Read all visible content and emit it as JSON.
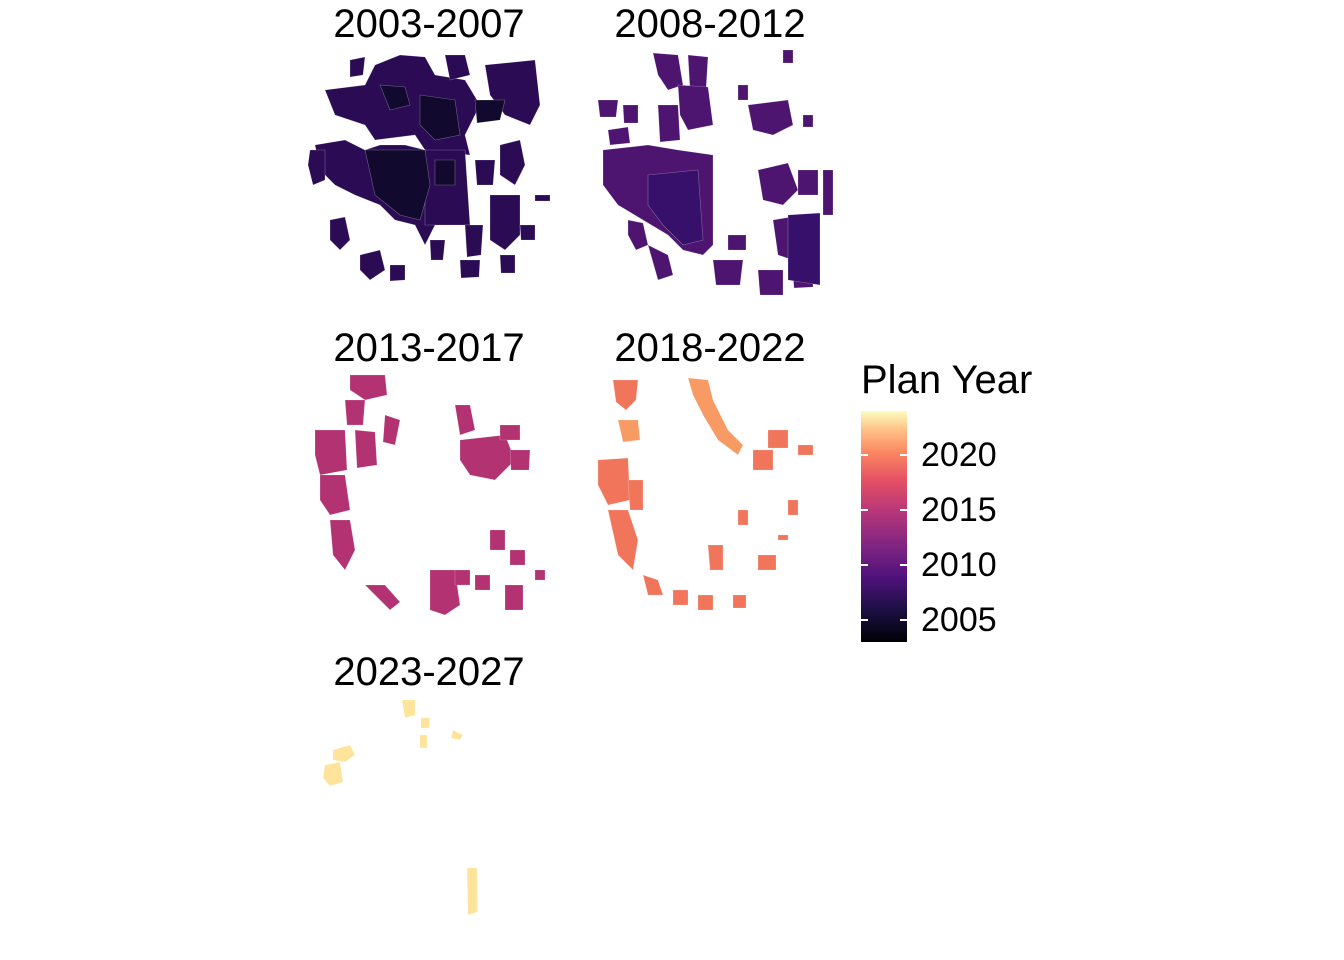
{
  "panels": [
    {
      "title": "2003-2007",
      "color": "#2a0b54",
      "dark": "#120a2e"
    },
    {
      "title": "2008-2012",
      "color": "#4d1470",
      "dark": "#36106a"
    },
    {
      "title": "2013-2017",
      "color": "#b23272",
      "dark": "#9c2a6f"
    },
    {
      "title": "2018-2022",
      "color": "#f1755a",
      "dark": "#f79a63"
    },
    {
      "title": "2023-2027",
      "color": "#fde49a",
      "dark": "#fef0b1"
    }
  ],
  "legend": {
    "title": "Plan Year",
    "ticks": [
      {
        "value": 2005,
        "label": "2005"
      },
      {
        "value": 2010,
        "label": "2010"
      },
      {
        "value": 2015,
        "label": "2015"
      },
      {
        "value": 2020,
        "label": "2020"
      }
    ],
    "range": [
      2003,
      2024
    ],
    "palette": "magma"
  }
}
